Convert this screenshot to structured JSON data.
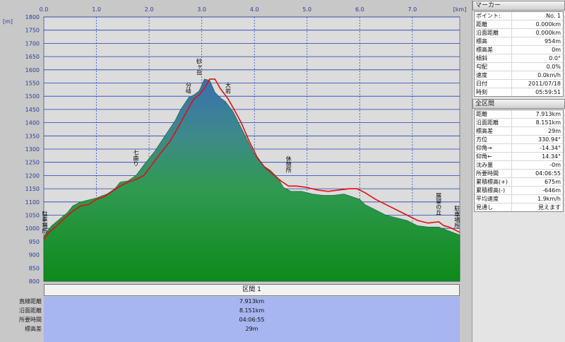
{
  "chart_data": {
    "type": "area",
    "x_ticks": [
      "0.0",
      "1.0",
      "2.0",
      "3.0",
      "4.0",
      "5.0",
      "6.0",
      "7.0"
    ],
    "x_unit": "[km]",
    "y_unit": "[m]",
    "y_ticks": [
      1800,
      1750,
      1700,
      1650,
      1600,
      1550,
      1500,
      1450,
      1400,
      1350,
      1300,
      1250,
      1200,
      1150,
      1100,
      1050,
      1000,
      950,
      900,
      850,
      800
    ],
    "xlim": [
      0,
      7.9
    ],
    "ylim": [
      800,
      1800
    ],
    "series": [
      {
        "role": "profile",
        "x": [
          0,
          0.05,
          0.15,
          0.3,
          0.45,
          0.55,
          0.7,
          0.8,
          1.0,
          1.2,
          1.35,
          1.45,
          1.6,
          1.75,
          1.9,
          2.1,
          2.3,
          2.5,
          2.6,
          2.75,
          2.85,
          2.95,
          3.05,
          3.15,
          3.25,
          3.35,
          3.45,
          3.6,
          3.7,
          3.8,
          3.9,
          4.0,
          4.15,
          4.3,
          4.45,
          4.55,
          4.7,
          4.9,
          5.1,
          5.3,
          5.5,
          5.7,
          5.85,
          6.0,
          6.1,
          6.25,
          6.4,
          6.5,
          6.7,
          6.9,
          7.1,
          7.3,
          7.5,
          7.7,
          7.9
        ],
        "y": [
          968,
          985,
          1010,
          1035,
          1060,
          1085,
          1100,
          1105,
          1115,
          1130,
          1150,
          1175,
          1180,
          1200,
          1240,
          1290,
          1350,
          1410,
          1450,
          1495,
          1505,
          1520,
          1565,
          1560,
          1515,
          1495,
          1480,
          1440,
          1400,
          1360,
          1320,
          1280,
          1240,
          1220,
          1190,
          1155,
          1140,
          1140,
          1130,
          1125,
          1125,
          1130,
          1120,
          1110,
          1090,
          1075,
          1060,
          1050,
          1040,
          1030,
          1010,
          1005,
          1005,
          990,
          975
        ]
      },
      {
        "role": "route",
        "color": "#e01010",
        "x": [
          0,
          0.1,
          0.25,
          0.4,
          0.55,
          0.7,
          0.85,
          1.0,
          1.15,
          1.3,
          1.45,
          1.6,
          1.75,
          1.9,
          2.05,
          2.2,
          2.4,
          2.6,
          2.75,
          2.85,
          2.95,
          3.05,
          3.15,
          3.25,
          3.35,
          3.5,
          3.6,
          3.75,
          3.9,
          4.05,
          4.2,
          4.35,
          4.5,
          4.65,
          4.8,
          5.0,
          5.2,
          5.4,
          5.6,
          5.8,
          5.95,
          6.1,
          6.3,
          6.5,
          6.7,
          6.9,
          7.1,
          7.3,
          7.5,
          7.6,
          7.7,
          7.9
        ],
        "y": [
          958,
          985,
          1010,
          1040,
          1065,
          1085,
          1090,
          1110,
          1120,
          1140,
          1160,
          1175,
          1185,
          1200,
          1240,
          1280,
          1330,
          1400,
          1455,
          1490,
          1505,
          1530,
          1565,
          1565,
          1530,
          1490,
          1455,
          1400,
          1330,
          1270,
          1230,
          1205,
          1180,
          1160,
          1160,
          1155,
          1145,
          1140,
          1145,
          1150,
          1150,
          1135,
          1110,
          1090,
          1070,
          1050,
          1030,
          1020,
          1025,
          1010,
          1005,
          985
        ]
      }
    ],
    "annotations": [
      {
        "text": "駐車場所",
        "x": 0.02,
        "y": 980
      },
      {
        "text": "七曲り",
        "x": 1.75,
        "y": 1235
      },
      {
        "text": "分岐",
        "x": 2.75,
        "y": 1510
      },
      {
        "text": "砂ヶ岳",
        "x": 2.95,
        "y": 1580
      },
      {
        "text": "大岩",
        "x": 3.5,
        "y": 1510
      },
      {
        "text": "休憩所",
        "x": 4.65,
        "y": 1210
      },
      {
        "text": "展望の丘",
        "x": 7.5,
        "y": 1050
      },
      {
        "text": "駐車場所",
        "x": 7.85,
        "y": 1000
      }
    ]
  },
  "sidebar": {
    "marker_title": "マーカー",
    "marker_rows": [
      {
        "label": "ポイント:",
        "value": "No. 1"
      },
      {
        "label": "距離",
        "value": "0.000km"
      },
      {
        "label": "沿面距離",
        "value": "0.000km"
      },
      {
        "label": "標高",
        "value": "954m"
      },
      {
        "label": "標高差",
        "value": "0m"
      },
      {
        "label": "傾斜",
        "value": "0.0°"
      },
      {
        "label": "勾配",
        "value": "0.0%"
      },
      {
        "label": "速度",
        "value": "0.0km/h"
      },
      {
        "label": "日付",
        "value": "2011/07/18"
      },
      {
        "label": "時刻",
        "value": "05:59:51"
      }
    ],
    "section_title": "全区間",
    "section_rows": [
      {
        "label": "距離",
        "value": "7.913km"
      },
      {
        "label": "沿面距離",
        "value": "8.151km"
      },
      {
        "label": "標高差",
        "value": "29m"
      },
      {
        "label": "方位",
        "value": "330.94°"
      },
      {
        "label": "仰角→",
        "value": "-14.34°"
      },
      {
        "label": "仰角←",
        "value": "14.34°"
      },
      {
        "label": "沈み量",
        "value": "-0m"
      },
      {
        "label": "所要時間",
        "value": "04:06:55"
      },
      {
        "label": "累積標高(+)",
        "value": "675m"
      },
      {
        "label": "累積標高(-)",
        "value": "-646m"
      },
      {
        "label": "平均速度",
        "value": "1.9km/h"
      },
      {
        "label": "見通し",
        "value": "見えます"
      }
    ]
  },
  "summary": {
    "header": "区間 1",
    "rows": [
      {
        "label": "直線距離",
        "value": "7.913km"
      },
      {
        "label": "沿面距離",
        "value": "8.151km"
      },
      {
        "label": "所要時間",
        "value": "04:06:55"
      },
      {
        "label": "標高差",
        "value": "29m"
      }
    ]
  }
}
